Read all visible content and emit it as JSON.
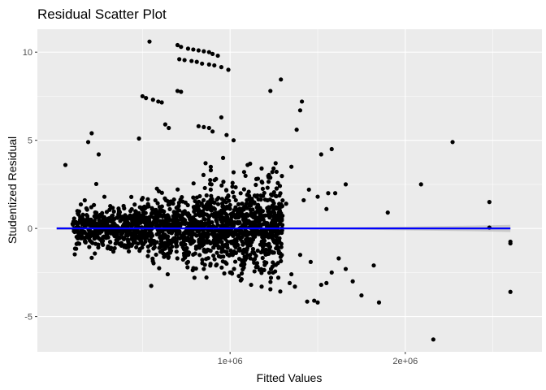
{
  "chart_data": {
    "type": "scatter",
    "title": "Residual Scatter Plot",
    "xlabel": "Fitted Values",
    "ylabel": "Studentized Residual",
    "xlim": [
      -100000,
      2780000
    ],
    "ylim": [
      -7.0,
      11.3
    ],
    "x_ticks": [
      {
        "value": 1000000,
        "label": "1e+06"
      },
      {
        "value": 2000000,
        "label": "2e+06"
      }
    ],
    "y_ticks": [
      {
        "value": -5,
        "label": "-5"
      },
      {
        "value": 0,
        "label": "0"
      },
      {
        "value": 5,
        "label": "5"
      },
      {
        "value": 10,
        "label": "10"
      }
    ],
    "grid": true,
    "background_color": "#EBEBEB",
    "grid_color": "#FFFFFF",
    "point_color": "#000000",
    "fit_color": "#0000FF",
    "band_color": "#BEBEBE",
    "fit_line": {
      "x": [
        10000,
        2600000
      ],
      "y": [
        0.0,
        0.0
      ]
    },
    "confidence_band": {
      "x": [
        10000,
        500000,
        1000000,
        1500000,
        1800000,
        2100000,
        2400000,
        2600000
      ],
      "upper": [
        0.08,
        0.04,
        0.03,
        0.05,
        0.08,
        0.12,
        0.16,
        0.2
      ],
      "lower": [
        -0.08,
        -0.04,
        -0.03,
        -0.05,
        -0.08,
        -0.12,
        -0.16,
        -0.2
      ]
    },
    "cluster_region": {
      "x_range": [
        100000,
        1300000
      ],
      "count": 1800,
      "seed": 12345
    },
    "points": [
      [
        540000,
        10.6
      ],
      [
        700000,
        10.4
      ],
      [
        720000,
        10.3
      ],
      [
        760000,
        10.2
      ],
      [
        790000,
        10.15
      ],
      [
        820000,
        10.1
      ],
      [
        850000,
        10.05
      ],
      [
        880000,
        10.0
      ],
      [
        900000,
        9.9
      ],
      [
        930000,
        9.8
      ],
      [
        710000,
        9.6
      ],
      [
        740000,
        9.55
      ],
      [
        780000,
        9.5
      ],
      [
        810000,
        9.45
      ],
      [
        840000,
        9.35
      ],
      [
        880000,
        9.3
      ],
      [
        910000,
        9.25
      ],
      [
        950000,
        9.15
      ],
      [
        990000,
        9.0
      ],
      [
        500000,
        7.5
      ],
      [
        520000,
        7.4
      ],
      [
        560000,
        7.3
      ],
      [
        590000,
        7.2
      ],
      [
        610000,
        7.15
      ],
      [
        700000,
        7.8
      ],
      [
        720000,
        7.75
      ],
      [
        1230000,
        7.8
      ],
      [
        1290000,
        8.45
      ],
      [
        1410000,
        7.2
      ],
      [
        1400000,
        6.7
      ],
      [
        1380000,
        5.6
      ],
      [
        1520000,
        4.2
      ],
      [
        1580000,
        4.5
      ],
      [
        1350000,
        3.5
      ],
      [
        1660000,
        2.5
      ],
      [
        2090000,
        2.5
      ],
      [
        2270000,
        4.9
      ],
      [
        820000,
        5.8
      ],
      [
        850000,
        5.75
      ],
      [
        880000,
        5.7
      ],
      [
        900000,
        5.5
      ],
      [
        950000,
        6.3
      ],
      [
        630000,
        5.9
      ],
      [
        650000,
        5.7
      ],
      [
        980000,
        5.3
      ],
      [
        1020000,
        5.0
      ],
      [
        480000,
        5.1
      ],
      [
        60000,
        3.6
      ],
      [
        210000,
        5.4
      ],
      [
        190000,
        4.9
      ],
      [
        250000,
        4.2
      ],
      [
        1260000,
        3.7
      ],
      [
        1180000,
        3.4
      ],
      [
        1100000,
        3.6
      ],
      [
        960000,
        4.0
      ],
      [
        1560000,
        2.0
      ],
      [
        1600000,
        2.0
      ],
      [
        1500000,
        1.8
      ],
      [
        1450000,
        2.2
      ],
      [
        1420000,
        1.6
      ],
      [
        1320000,
        1.4
      ],
      [
        1550000,
        1.1
      ],
      [
        1900000,
        0.9
      ],
      [
        2480000,
        1.5
      ],
      [
        2480000,
        0.05
      ],
      [
        2600000,
        -0.75
      ],
      [
        2600000,
        -0.85
      ],
      [
        2600000,
        -3.6
      ],
      [
        1820000,
        -2.1
      ],
      [
        1850000,
        -4.2
      ],
      [
        2160000,
        -6.3
      ],
      [
        1520000,
        -3.2
      ],
      [
        1550000,
        -3.1
      ],
      [
        1580000,
        -2.5
      ],
      [
        1620000,
        -1.7
      ],
      [
        1660000,
        -2.3
      ],
      [
        1700000,
        -3.0
      ],
      [
        1750000,
        -3.8
      ],
      [
        1480000,
        -4.1
      ],
      [
        1500000,
        -4.2
      ],
      [
        1440000,
        -4.15
      ],
      [
        1340000,
        -3.1
      ],
      [
        1370000,
        -3.3
      ],
      [
        1230000,
        -3.45
      ],
      [
        1180000,
        -3.3
      ],
      [
        1120000,
        -3.2
      ],
      [
        1000000,
        -2.5
      ],
      [
        1050000,
        -2.7
      ],
      [
        1400000,
        -1.5
      ],
      [
        1460000,
        -1.9
      ],
      [
        1350000,
        -2.6
      ],
      [
        1070000,
        -1.8
      ],
      [
        980000,
        -2.0
      ],
      [
        850000,
        -2.3
      ],
      [
        920000,
        -2.1
      ],
      [
        760000,
        -1.9
      ],
      [
        1220000,
        2.9
      ],
      [
        1150000,
        2.8
      ],
      [
        1080000,
        3.2
      ],
      [
        890000,
        3.3
      ],
      [
        860000,
        3.7
      ]
    ]
  }
}
